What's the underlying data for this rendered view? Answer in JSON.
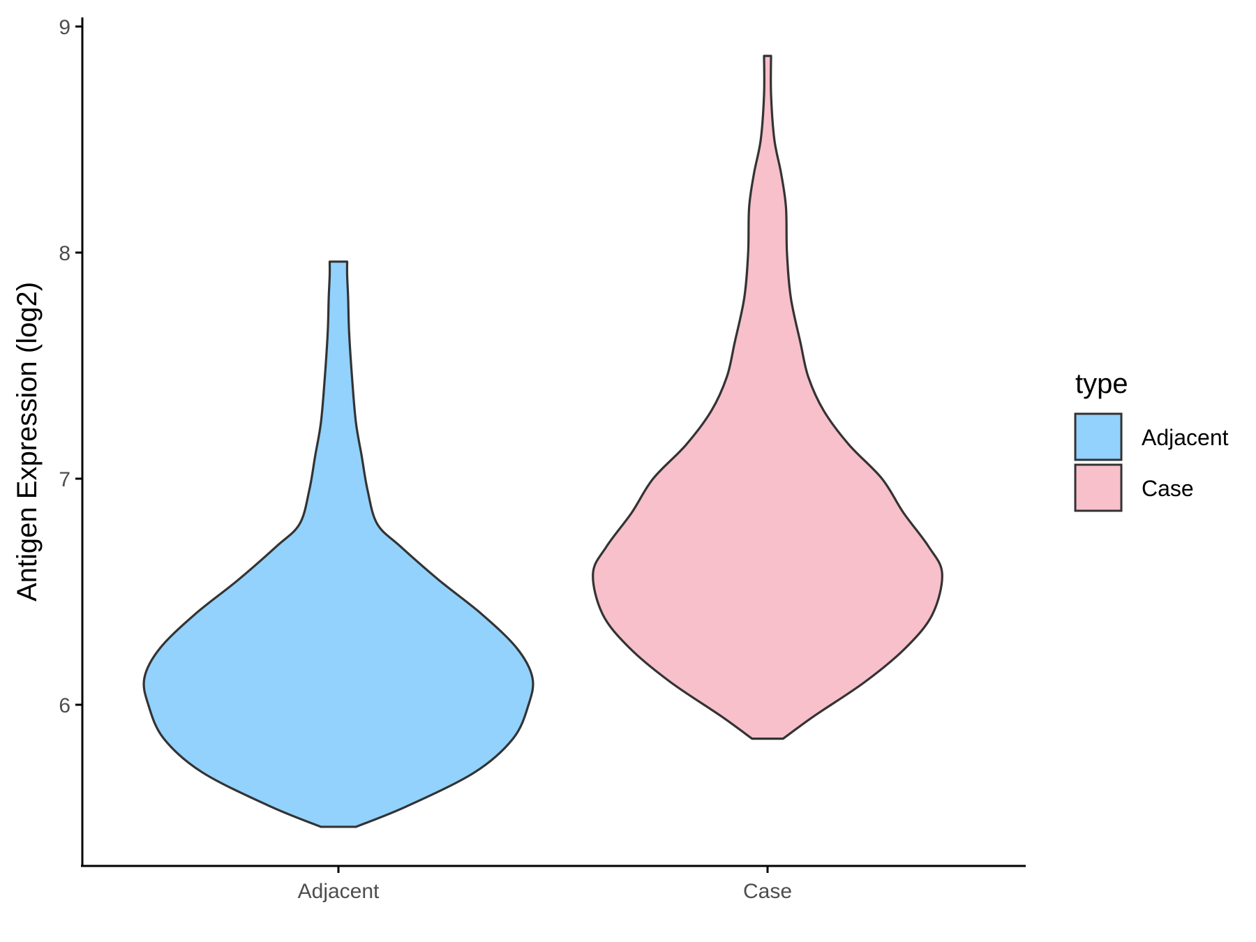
{
  "chart_data": {
    "type": "violin",
    "title": "",
    "xlabel": "",
    "ylabel": "Antigen Expression (log2)",
    "categories": [
      "Adjacent",
      "Case"
    ],
    "ylim": [
      5.4,
      9.05
    ],
    "yticks": [
      6,
      7,
      8,
      9
    ],
    "grid": false,
    "legend": {
      "title": "type",
      "position": "right",
      "entries": [
        {
          "label": "Adjacent",
          "color": "#92d2fd"
        },
        {
          "label": "Case",
          "color": "#f7c0cb"
        }
      ]
    },
    "series": [
      {
        "category": "Adjacent",
        "color": "#92d2fd",
        "min": 5.46,
        "max": 7.96,
        "density_profile": [
          [
            5.46,
            0.09
          ],
          [
            5.55,
            0.35
          ],
          [
            5.7,
            0.7
          ],
          [
            5.85,
            0.9
          ],
          [
            6.0,
            0.98
          ],
          [
            6.12,
            1.0
          ],
          [
            6.25,
            0.92
          ],
          [
            6.4,
            0.74
          ],
          [
            6.55,
            0.52
          ],
          [
            6.7,
            0.32
          ],
          [
            6.8,
            0.2
          ],
          [
            6.95,
            0.15
          ],
          [
            7.1,
            0.12
          ],
          [
            7.25,
            0.09
          ],
          [
            7.45,
            0.07
          ],
          [
            7.65,
            0.055
          ],
          [
            7.8,
            0.05
          ],
          [
            7.9,
            0.045
          ],
          [
            7.96,
            0.045
          ]
        ]
      },
      {
        "category": "Case",
        "color": "#f7c0cb",
        "min": 5.85,
        "max": 8.87,
        "density_profile": [
          [
            5.85,
            0.08
          ],
          [
            5.95,
            0.24
          ],
          [
            6.1,
            0.5
          ],
          [
            6.25,
            0.71
          ],
          [
            6.4,
            0.85
          ],
          [
            6.58,
            0.9
          ],
          [
            6.7,
            0.83
          ],
          [
            6.85,
            0.7
          ],
          [
            7.0,
            0.59
          ],
          [
            7.15,
            0.42
          ],
          [
            7.3,
            0.29
          ],
          [
            7.45,
            0.21
          ],
          [
            7.6,
            0.17
          ],
          [
            7.8,
            0.12
          ],
          [
            8.0,
            0.1
          ],
          [
            8.2,
            0.095
          ],
          [
            8.35,
            0.07
          ],
          [
            8.5,
            0.035
          ],
          [
            8.7,
            0.018
          ],
          [
            8.87,
            0.018
          ]
        ]
      }
    ]
  }
}
